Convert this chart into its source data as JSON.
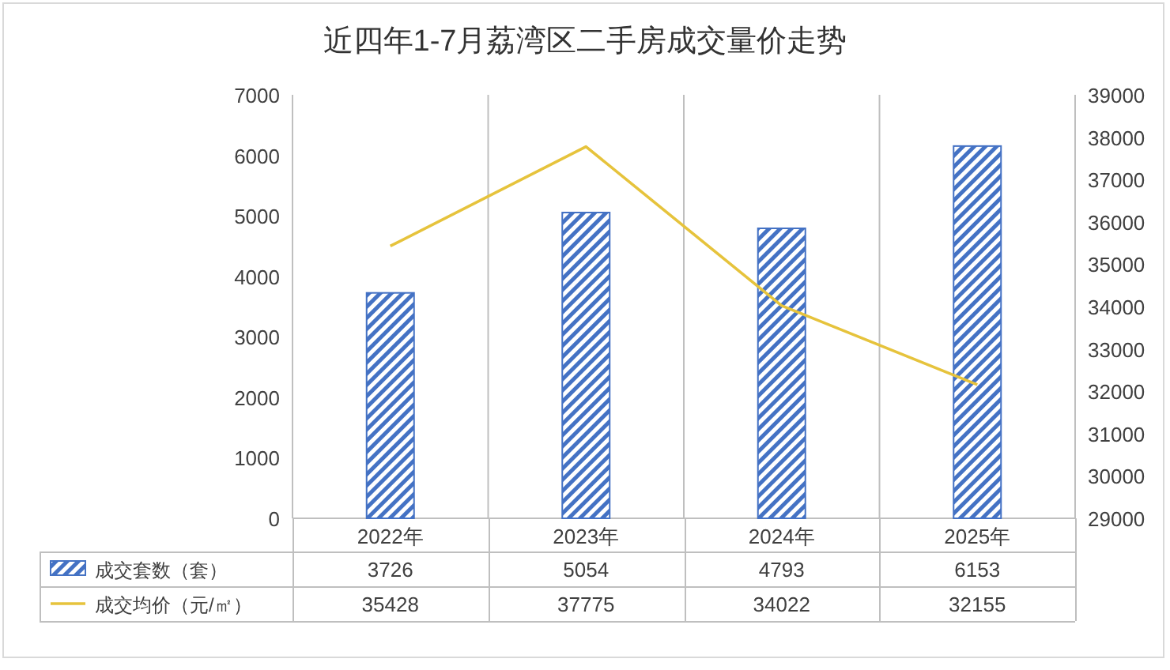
{
  "chart_data": {
    "type": "bar",
    "title": "近四年1-7月荔湾区二手房成交量价走势",
    "categories": [
      "2022年",
      "2023年",
      "2024年",
      "2025年"
    ],
    "series": [
      {
        "name": "成交套数（套）",
        "color": "#4472c4",
        "values": [
          3726,
          5054,
          4793,
          6153
        ]
      },
      {
        "name": "成交均价（元/㎡）",
        "type": "line",
        "color": "#e6c33c",
        "axis": "y2",
        "values": [
          35428,
          37775,
          34022,
          32155
        ]
      }
    ],
    "ylim": [
      0,
      7000
    ],
    "yticks": [
      0,
      1000,
      2000,
      3000,
      4000,
      5000,
      6000,
      7000
    ],
    "y2lim": [
      29000,
      39000
    ],
    "y2ticks": [
      29000,
      30000,
      31000,
      32000,
      33000,
      34000,
      35000,
      36000,
      37000,
      38000,
      39000
    ],
    "data_labels": true,
    "legend": "bottom",
    "grid": false,
    "marker": "none",
    "line_style": "solid"
  }
}
